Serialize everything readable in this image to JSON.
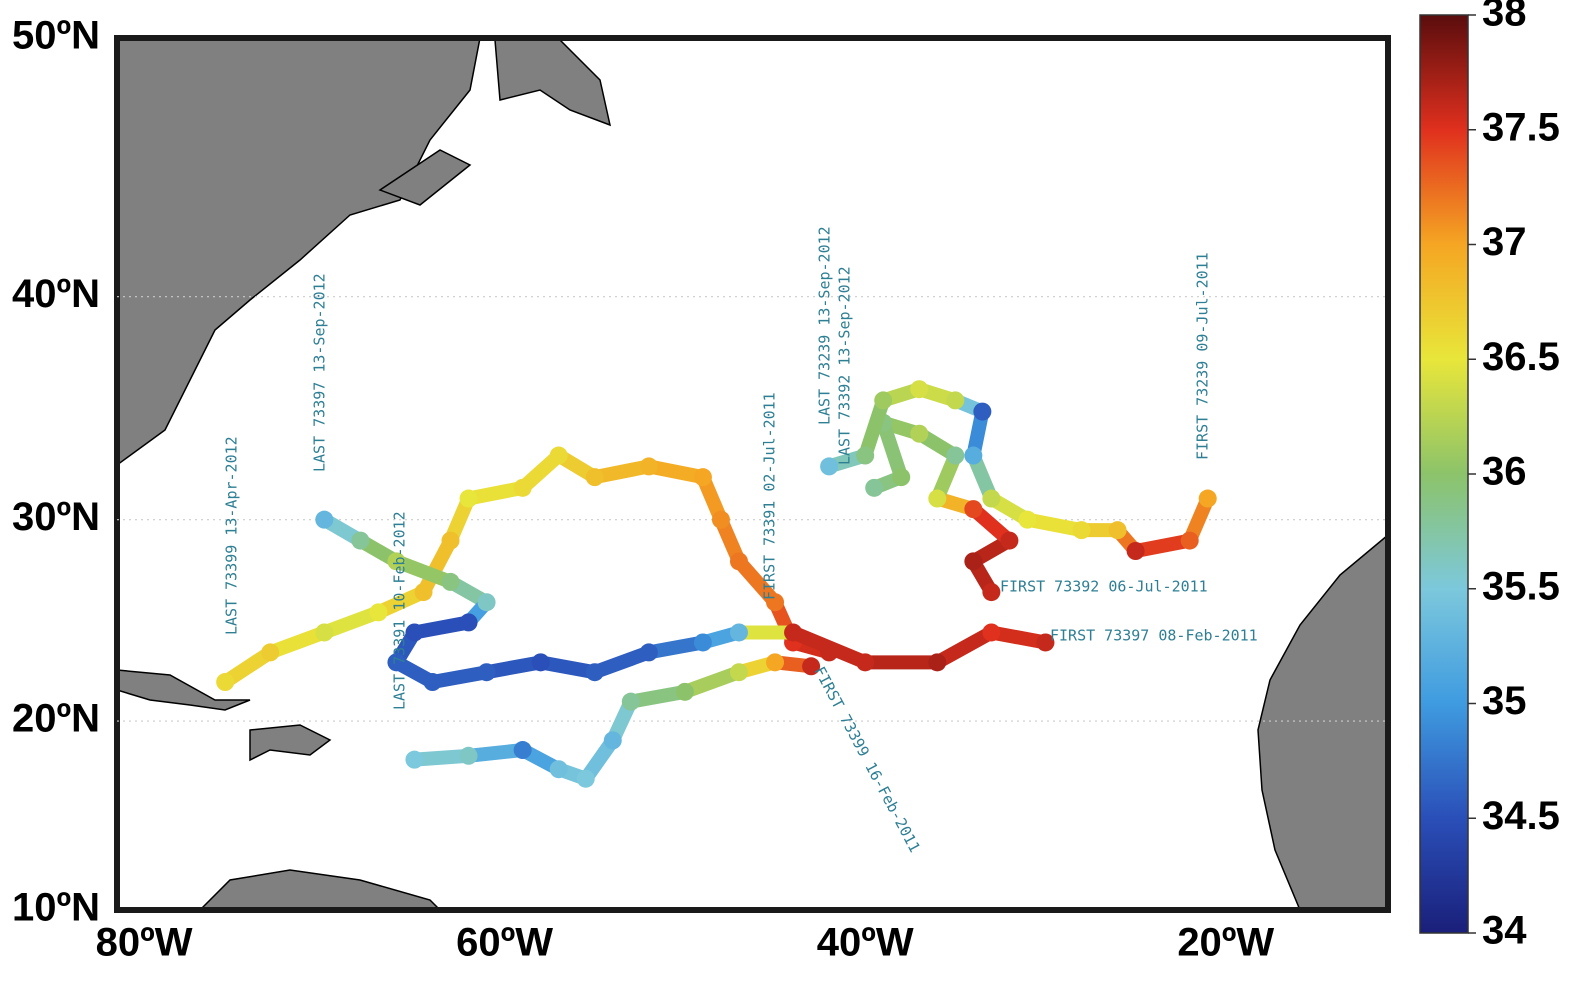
{
  "chart_data": {
    "type": "map",
    "projection": "mercator",
    "xlim": [
      -81.5,
      -11
    ],
    "ylim": [
      10,
      50
    ],
    "xticks": [
      {
        "value": -80,
        "label": "80ºW"
      },
      {
        "value": -60,
        "label": "60ºW"
      },
      {
        "value": -40,
        "label": "40ºW"
      },
      {
        "value": -20,
        "label": "20ºW"
      }
    ],
    "yticks": [
      {
        "value": 10,
        "label": "10ºN"
      },
      {
        "value": 20,
        "label": "20ºN"
      },
      {
        "value": 30,
        "label": "30ºN"
      },
      {
        "value": 40,
        "label": "40ºN"
      },
      {
        "value": 50,
        "label": "50ºN"
      }
    ],
    "grid": true,
    "colorbar": {
      "lim": [
        34,
        38
      ],
      "ticks": [
        34,
        34.5,
        35,
        35.5,
        36,
        36.5,
        37,
        37.5,
        38
      ],
      "colormap": [
        "#1a1f7a",
        "#2a4fb8",
        "#3f9be0",
        "#7cc8dc",
        "#8cc36a",
        "#e8e63a",
        "#f5a623",
        "#e0301e",
        "#5a0d0d"
      ]
    },
    "series": [
      {
        "lon": [
          -75.5,
          -73,
          -70,
          -67,
          -64.5,
          -63,
          -62,
          -59,
          -57,
          -55,
          -52,
          -49,
          -48,
          -47,
          -45,
          -44,
          -42
        ],
        "lat": [
          22,
          23.5,
          24.5,
          25.5,
          26.5,
          29,
          31,
          31.5,
          33,
          32,
          32.5,
          32,
          30,
          28,
          26,
          24,
          23.5
        ],
        "values": [
          36.6,
          36.7,
          36.4,
          36.5,
          36.8,
          36.8,
          36.5,
          36.6,
          36.6,
          36.8,
          36.9,
          37.0,
          37.1,
          37.2,
          37.2,
          37.5,
          37.6
        ]
      },
      {
        "lon": [
          -70,
          -68,
          -66,
          -63,
          -61,
          -62,
          -65,
          -66,
          -64,
          -61,
          -58,
          -55,
          -52,
          -49,
          -47,
          -44,
          -40,
          -36,
          -33,
          -30
        ],
        "lat": [
          30,
          29,
          28,
          27,
          26,
          25,
          24.5,
          23,
          22,
          22.5,
          23,
          22.5,
          23.5,
          24,
          24.5,
          24.5,
          23,
          23,
          24.5,
          24
        ],
        "values": [
          35.3,
          35.8,
          36.2,
          35.9,
          35.6,
          34.5,
          34.5,
          34.6,
          34.6,
          34.6,
          34.5,
          34.6,
          34.6,
          34.9,
          35.3,
          37.6,
          37.6,
          37.7,
          37.5,
          37.6
        ]
      },
      {
        "lon": [
          -65,
          -62,
          -59,
          -57,
          -55.5,
          -54,
          -53,
          -50,
          -47,
          -45,
          -43
        ],
        "lat": [
          18,
          18.2,
          18.5,
          17.5,
          17,
          19,
          21,
          21.5,
          22.5,
          23,
          22.8
        ],
        "values": [
          35.5,
          35.6,
          34.8,
          35.4,
          35.5,
          35.3,
          35.8,
          36.0,
          36.3,
          37.0,
          37.6
        ]
      },
      {
        "lon": [
          -33,
          -34,
          -32,
          -34,
          -36,
          -35,
          -37,
          -39,
          -38,
          -39.5
        ],
        "lat": [
          26.5,
          28,
          29,
          30.5,
          31,
          33,
          34,
          34.5,
          32,
          31.5
        ],
        "values": [
          37.6,
          37.7,
          37.6,
          37.4,
          36.4,
          35.8,
          36.2,
          35.9,
          36.0,
          35.8
        ]
      },
      {
        "lon": [
          -21,
          -22,
          -25,
          -26,
          -28,
          -31,
          -33,
          -34,
          -33.5,
          -35,
          -37,
          -39,
          -40,
          -42
        ],
        "lat": [
          31,
          29,
          28.5,
          29.5,
          29.5,
          30,
          31,
          33,
          35,
          35.5,
          36,
          35.5,
          33,
          32.5
        ],
        "values": [
          37.0,
          37.3,
          37.6,
          36.8,
          36.6,
          36.5,
          36.3,
          35.2,
          34.6,
          36.3,
          36.4,
          36.1,
          35.9,
          35.4
        ]
      }
    ],
    "annotations": [
      "LAST 73399 13-Apr-2012",
      "LAST 73397 13-Sep-2012",
      "LAST 73391 10-Feb-2012",
      "FIRST 73391 02-Jul-2011",
      "LAST 73239 13-Sep-2012",
      "LAST 73392 13-Sep-2012",
      "FIRST 73239 09-Jul-2011",
      "FIRST 73392 06-Jul-2011",
      "FIRST 73397 08-Feb-2011",
      "FIRST 73399 16-Feb-2011"
    ]
  }
}
